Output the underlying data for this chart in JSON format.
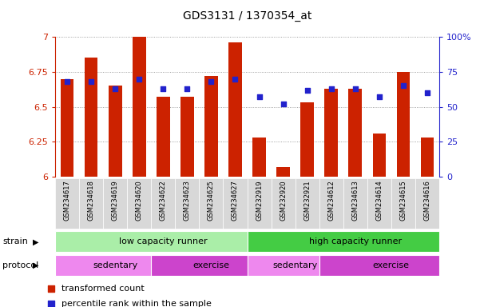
{
  "title": "GDS3131 / 1370354_at",
  "samples": [
    "GSM234617",
    "GSM234618",
    "GSM234619",
    "GSM234620",
    "GSM234622",
    "GSM234623",
    "GSM234625",
    "GSM234627",
    "GSM232919",
    "GSM232920",
    "GSM232921",
    "GSM234612",
    "GSM234613",
    "GSM234614",
    "GSM234615",
    "GSM234616"
  ],
  "bar_values": [
    6.7,
    6.85,
    6.65,
    7.0,
    6.57,
    6.57,
    6.72,
    6.96,
    6.28,
    6.07,
    6.53,
    6.63,
    6.63,
    6.31,
    6.75,
    6.28
  ],
  "dot_values": [
    68,
    68,
    63,
    70,
    63,
    63,
    68,
    70,
    57,
    52,
    62,
    63,
    63,
    57,
    65,
    60
  ],
  "ylim_left": [
    6.0,
    7.0
  ],
  "ylim_right": [
    0,
    100
  ],
  "yticks_left": [
    6.0,
    6.25,
    6.5,
    6.75,
    7.0
  ],
  "ytick_labels_left": [
    "6",
    "6.25",
    "6.5",
    "6.75",
    "7"
  ],
  "yticks_right": [
    0,
    25,
    50,
    75,
    100
  ],
  "ytick_labels_right": [
    "0",
    "25",
    "50",
    "75",
    "100%"
  ],
  "bar_color": "#cc2200",
  "dot_color": "#2222cc",
  "grid_color": "#888888",
  "bg_color": "#ffffff",
  "xticklabel_bg": "#d8d8d8",
  "strain_groups": [
    {
      "label": "low capacity runner",
      "start": 0,
      "end": 8,
      "color": "#aaeea8"
    },
    {
      "label": "high capacity runner",
      "start": 8,
      "end": 16,
      "color": "#44cc44"
    }
  ],
  "protocol_groups": [
    {
      "label": "sedentary",
      "start": 0,
      "end": 4,
      "color": "#ee88ee"
    },
    {
      "label": "exercise",
      "start": 4,
      "end": 8,
      "color": "#cc44cc"
    },
    {
      "label": "sedentary",
      "start": 8,
      "end": 11,
      "color": "#ee88ee"
    },
    {
      "label": "exercise",
      "start": 11,
      "end": 16,
      "color": "#cc44cc"
    }
  ],
  "strain_label": "strain",
  "protocol_label": "protocol",
  "legend_bar_label": "transformed count",
  "legend_dot_label": "percentile rank within the sample",
  "left_color": "#cc2200",
  "right_color": "#2222cc"
}
